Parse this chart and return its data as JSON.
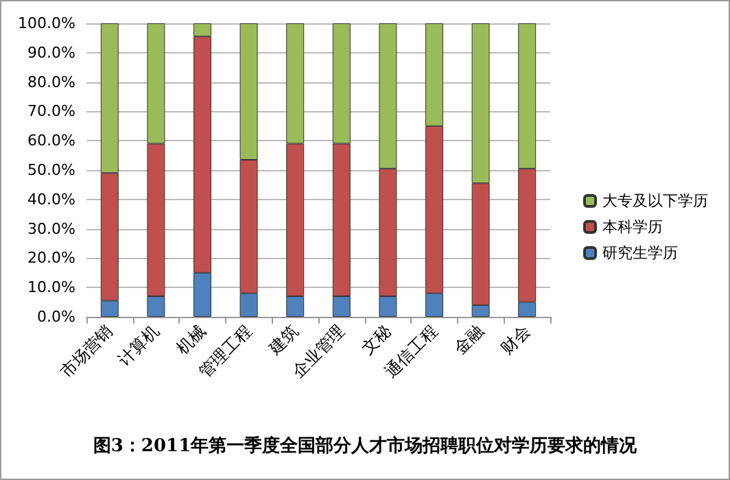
{
  "chart_data": {
    "type": "bar",
    "stacked": true,
    "title": "图3：2011年第一季度全国部分人才市场招聘职位对学历要求的情况",
    "categories": [
      "市场营销",
      "计算机",
      "机械",
      "管理工程",
      "建筑",
      "企业管理",
      "文秘",
      "通信工程",
      "金融",
      "财会"
    ],
    "series": [
      {
        "name": "研究生学历",
        "color": "#4f81bd",
        "values": [
          5.5,
          7,
          15,
          8,
          7,
          7,
          7,
          8,
          4,
          5
        ]
      },
      {
        "name": "本科学历",
        "color": "#c0504d",
        "values": [
          43.5,
          52,
          80.5,
          45.5,
          52,
          52,
          43.5,
          57,
          41.5,
          45.5
        ]
      },
      {
        "name": "大专及以下学历",
        "color": "#9bbb59",
        "values": [
          51,
          41,
          4.5,
          46.5,
          41,
          41,
          49.5,
          35,
          54.5,
          49.5
        ]
      }
    ],
    "ylim": [
      0,
      100
    ],
    "yticks": [
      {
        "value": 0,
        "label": "0.0%"
      },
      {
        "value": 10,
        "label": "10.0%"
      },
      {
        "value": 20,
        "label": "20.0%"
      },
      {
        "value": 30,
        "label": "30.0%"
      },
      {
        "value": 40,
        "label": "40.0%"
      },
      {
        "value": 50,
        "label": "50.0%"
      },
      {
        "value": 60,
        "label": "60.0%"
      },
      {
        "value": 70,
        "label": "70.0%"
      },
      {
        "value": 80,
        "label": "80.0%"
      },
      {
        "value": 90,
        "label": "90.0%"
      },
      {
        "value": 100,
        "label": "100.0%"
      }
    ],
    "grid": "y",
    "legend": "right"
  }
}
